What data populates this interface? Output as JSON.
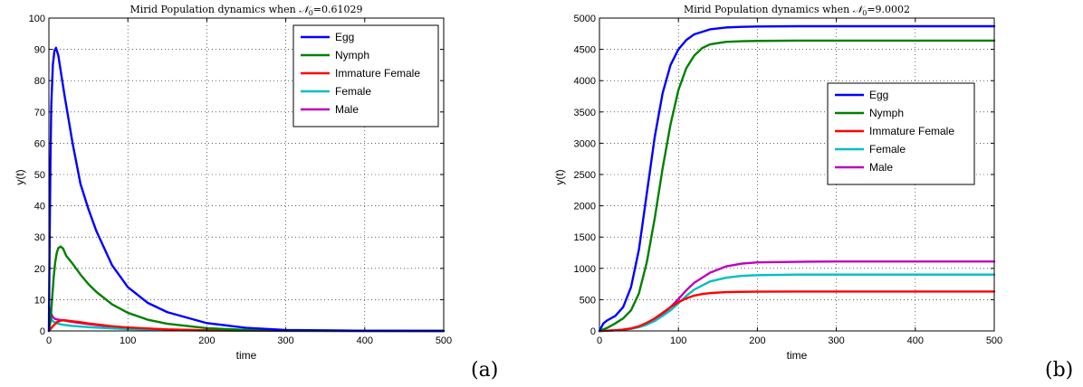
{
  "figure": {
    "panels": [
      {
        "panel_label": "(a)",
        "title_prefix": "Mirid Population dynamics when ",
        "title_symbol": "𝒩",
        "title_subscript": "0",
        "title_value": "=0.61029",
        "ylabel": "y(t)",
        "xlabel": "time",
        "legend_position": "top-right",
        "legend_entries": [
          "Egg",
          "Nymph",
          "Immature Female",
          "Female",
          "Male"
        ]
      },
      {
        "panel_label": "(b)",
        "title_prefix": "Mirid Population dynamics when ",
        "title_symbol": "𝒩",
        "title_subscript": "0",
        "title_value": "=9.0002",
        "ylabel": "y(t)",
        "xlabel": "time",
        "legend_position": "center-right",
        "legend_entries": [
          "Egg",
          "Nymph",
          "Immature Female",
          "Female",
          "Male"
        ]
      }
    ]
  },
  "chart_data": [
    {
      "type": "line",
      "title": "Mirid Population dynamics when 𝒩0=0.61029",
      "xlabel": "time",
      "ylabel": "y(t)",
      "xlim": [
        0,
        500
      ],
      "ylim": [
        0,
        100
      ],
      "xticks": [
        0,
        100,
        200,
        300,
        400,
        500
      ],
      "yticks": [
        0,
        10,
        20,
        30,
        40,
        50,
        60,
        70,
        80,
        90,
        100
      ],
      "grid": true,
      "legend": "top-right",
      "series": [
        {
          "name": "Egg",
          "color": "#0000ff",
          "x": [
            0,
            1,
            2,
            3,
            5,
            7,
            9,
            12,
            15,
            20,
            30,
            40,
            50,
            60,
            80,
            100,
            125,
            150,
            200,
            250,
            300,
            400,
            500
          ],
          "y": [
            0,
            30,
            55,
            72,
            85,
            89.5,
            90.5,
            88,
            83,
            75,
            60,
            47,
            39,
            32,
            21,
            14,
            9,
            6,
            2.5,
            1,
            0.3,
            0.05,
            0
          ]
        },
        {
          "name": "Nymph",
          "color": "#008000",
          "x": [
            0,
            2,
            4,
            6,
            8,
            10,
            12,
            15,
            18,
            22,
            30,
            40,
            50,
            60,
            80,
            100,
            125,
            150,
            200,
            250,
            300,
            400,
            500
          ],
          "y": [
            0,
            3,
            10,
            17,
            22,
            25,
            26.5,
            27,
            26.3,
            24,
            21.5,
            18,
            15,
            12.5,
            8.5,
            5.8,
            3.6,
            2.3,
            0.9,
            0.3,
            0.1,
            0,
            0
          ]
        },
        {
          "name": "Immature Female",
          "color": "#ff0000",
          "x": [
            0,
            5,
            10,
            15,
            20,
            30,
            40,
            50,
            60,
            80,
            100,
            150,
            200,
            300,
            500
          ],
          "y": [
            0,
            1.5,
            2.8,
            3.3,
            3.4,
            3.1,
            2.8,
            2.4,
            2.1,
            1.5,
            1.1,
            0.5,
            0.2,
            0.05,
            0
          ]
        },
        {
          "name": "Female",
          "color": "#00bfbf",
          "x": [
            0,
            2,
            5,
            10,
            15,
            20,
            30,
            50,
            80,
            100,
            150,
            200,
            300,
            500
          ],
          "y": [
            5,
            4.2,
            3.1,
            2.4,
            2.1,
            1.9,
            1.6,
            1.2,
            0.8,
            0.6,
            0.3,
            0.1,
            0.02,
            0
          ]
        },
        {
          "name": "Male",
          "color": "#bf00bf",
          "x": [
            0,
            2,
            5,
            8,
            12,
            18,
            25,
            35,
            50,
            70,
            100,
            150,
            200,
            300,
            500
          ],
          "y": [
            7.5,
            6,
            4.4,
            3.8,
            3.6,
            3.4,
            3.1,
            2.7,
            2.2,
            1.6,
            1.0,
            0.45,
            0.2,
            0.03,
            0
          ]
        }
      ]
    },
    {
      "type": "line",
      "title": "Mirid Population dynamics when 𝒩0=9.0002",
      "xlabel": "time",
      "ylabel": "y(t)",
      "xlim": [
        0,
        500
      ],
      "ylim": [
        0,
        5000
      ],
      "xticks": [
        0,
        100,
        200,
        300,
        400,
        500
      ],
      "yticks": [
        0,
        500,
        1000,
        1500,
        2000,
        2500,
        3000,
        3500,
        4000,
        4500,
        5000
      ],
      "grid": true,
      "legend": "center-right",
      "series": [
        {
          "name": "Egg",
          "color": "#0000ff",
          "x": [
            0,
            5,
            10,
            20,
            30,
            40,
            50,
            60,
            70,
            80,
            90,
            100,
            110,
            120,
            140,
            160,
            180,
            200,
            250,
            300,
            500
          ],
          "y": [
            0,
            120,
            170,
            240,
            380,
            700,
            1300,
            2200,
            3100,
            3800,
            4250,
            4500,
            4650,
            4740,
            4820,
            4850,
            4860,
            4865,
            4870,
            4870,
            4870
          ]
        },
        {
          "name": "Nymph",
          "color": "#008000",
          "x": [
            0,
            10,
            20,
            30,
            40,
            50,
            60,
            70,
            80,
            90,
            100,
            110,
            120,
            130,
            140,
            160,
            180,
            200,
            250,
            300,
            500
          ],
          "y": [
            0,
            50,
            120,
            200,
            330,
            600,
            1100,
            1800,
            2600,
            3300,
            3850,
            4200,
            4400,
            4520,
            4580,
            4620,
            4630,
            4635,
            4640,
            4640,
            4640
          ]
        },
        {
          "name": "Immature Female",
          "color": "#ff0000",
          "x": [
            0,
            10,
            20,
            30,
            40,
            50,
            60,
            70,
            80,
            90,
            100,
            110,
            120,
            130,
            140,
            160,
            180,
            200,
            250,
            300,
            500
          ],
          "y": [
            0,
            5,
            10,
            20,
            40,
            75,
            130,
            200,
            290,
            380,
            460,
            520,
            565,
            590,
            605,
            620,
            625,
            628,
            630,
            630,
            630
          ]
        },
        {
          "name": "Female",
          "color": "#00bfbf",
          "x": [
            0,
            10,
            20,
            30,
            40,
            50,
            60,
            70,
            80,
            90,
            100,
            110,
            120,
            140,
            160,
            180,
            200,
            250,
            300,
            500
          ],
          "y": [
            0,
            5,
            10,
            20,
            35,
            60,
            100,
            160,
            240,
            330,
            440,
            560,
            660,
            790,
            850,
            880,
            892,
            900,
            900,
            900
          ]
        },
        {
          "name": "Male",
          "color": "#bf00bf",
          "x": [
            0,
            10,
            20,
            30,
            40,
            50,
            60,
            70,
            80,
            90,
            100,
            110,
            120,
            140,
            160,
            180,
            200,
            250,
            300,
            500
          ],
          "y": [
            0,
            5,
            10,
            20,
            35,
            65,
            110,
            180,
            270,
            380,
            510,
            650,
            770,
            930,
            1030,
            1075,
            1095,
            1105,
            1110,
            1110
          ]
        }
      ]
    }
  ]
}
